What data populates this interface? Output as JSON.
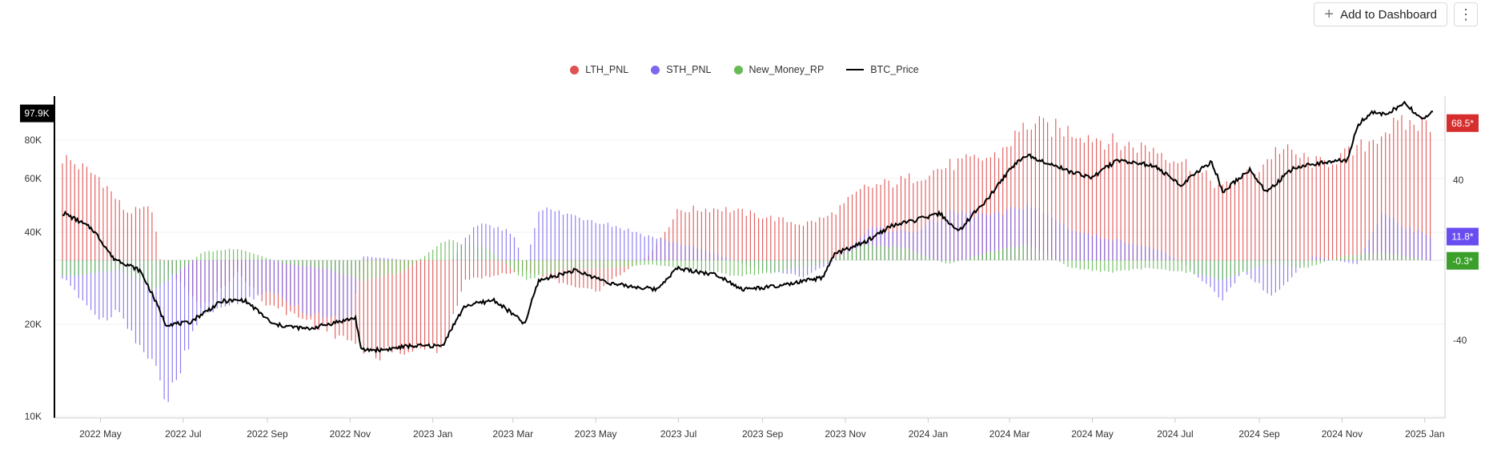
{
  "toolbar": {
    "add_label": "Add to Dashboard",
    "more_label": "⋮"
  },
  "colors": {
    "lth": "#e05252",
    "sth": "#7b68ee",
    "new_money": "#66bb55",
    "price": "#000000"
  },
  "chart_data": {
    "type": "bar",
    "legend": [
      "LTH_PNL",
      "STH_PNL",
      "New_Money_RP",
      "BTC_Price"
    ],
    "legend_position": "top-center",
    "x_ticks": [
      "2022 May",
      "2022 Jul",
      "2022 Sep",
      "2022 Nov",
      "2023 Jan",
      "2023 Mar",
      "2023 May",
      "2023 Jul",
      "2023 Sep",
      "2023 Nov",
      "2024 Jan",
      "2024 Mar",
      "2024 May",
      "2024 Jul",
      "2024 Sep",
      "2024 Nov",
      "2025 Jan"
    ],
    "left_axis": {
      "scale": "log",
      "ticks": [
        "10K",
        "20K",
        "40K",
        "60K",
        "80K"
      ],
      "tick_values": [
        10000,
        20000,
        40000,
        60000,
        80000
      ],
      "range": [
        10000,
        105000
      ]
    },
    "right_axis": {
      "ticks": [
        "40",
        "-40"
      ],
      "tick_values": [
        40,
        -40
      ],
      "range": [
        -78,
        78
      ]
    },
    "last_values": {
      "btc_price": "97.9K",
      "lth": "68.5*",
      "sth": "11.8*",
      "new_money": "-0.3*"
    },
    "x_range": [
      "2022-04-03",
      "2025-01-07"
    ],
    "series": [
      {
        "name": "LTH_PNL",
        "axis": "right",
        "x": [
          "2022-04-05",
          "2022-05-01",
          "2022-05-20",
          "2022-06-10",
          "2022-06-12",
          "2022-07-15",
          "2022-08-10",
          "2022-09-01",
          "2022-10-01",
          "2022-11-01",
          "2022-11-15",
          "2022-12-15",
          "2023-01-08",
          "2023-01-25",
          "2023-03-10",
          "2023-04-01",
          "2023-05-01",
          "2023-06-10",
          "2023-07-01",
          "2023-08-01",
          "2023-09-01",
          "2023-10-01",
          "2023-10-20",
          "2023-11-15",
          "2023-12-15",
          "2024-01-20",
          "2024-02-20",
          "2024-03-14",
          "2024-04-20",
          "2024-05-20",
          "2024-06-15",
          "2024-07-10",
          "2024-08-05",
          "2024-09-01",
          "2024-09-15",
          "2024-10-15",
          "2024-11-10",
          "2024-12-05",
          "2024-12-20",
          "2025-01-05"
        ],
        "values": [
          51,
          41,
          24,
          26,
          2,
          -24,
          -6,
          -22,
          -30,
          -40,
          -47,
          -45,
          -43,
          -10,
          -5,
          -10,
          -16,
          3,
          25,
          26,
          22,
          18,
          22,
          36,
          40,
          48,
          52,
          68,
          64,
          58,
          56,
          48,
          36,
          46,
          56,
          48,
          54,
          66,
          68,
          68.5
        ]
      },
      {
        "name": "STH_PNL",
        "axis": "right",
        "x": [
          "2022-04-05",
          "2022-05-01",
          "2022-05-15",
          "2022-06-10",
          "2022-06-20",
          "2022-07-15",
          "2022-08-10",
          "2022-09-01",
          "2022-10-01",
          "2022-11-01",
          "2022-11-10",
          "2022-12-15",
          "2023-01-15",
          "2023-02-01",
          "2023-03-01",
          "2023-03-10",
          "2023-03-20",
          "2023-05-01",
          "2023-06-10",
          "2023-07-15",
          "2023-09-01",
          "2023-10-01",
          "2023-10-20",
          "2023-11-20",
          "2023-12-20",
          "2024-01-20",
          "2024-02-20",
          "2024-03-14",
          "2024-04-20",
          "2024-05-20",
          "2024-06-20",
          "2024-07-10",
          "2024-08-05",
          "2024-08-20",
          "2024-09-10",
          "2024-10-10",
          "2024-11-12",
          "2024-12-01",
          "2024-12-20",
          "2025-01-05"
        ],
        "values": [
          -10,
          -30,
          -25,
          -55,
          -70,
          -26,
          -22,
          -15,
          -26,
          -30,
          2,
          0,
          0,
          18,
          14,
          -4,
          26,
          20,
          12,
          6,
          -5,
          -8,
          -2,
          16,
          14,
          24,
          22,
          28,
          14,
          10,
          5,
          -3,
          -20,
          -5,
          -18,
          2,
          -2,
          24,
          16,
          11.8
        ]
      },
      {
        "name": "New_Money_RP",
        "axis": "right",
        "x": [
          "2022-04-05",
          "2022-05-15",
          "2022-06-10",
          "2022-07-15",
          "2022-08-10",
          "2022-09-15",
          "2022-10-15",
          "2022-11-10",
          "2022-12-10",
          "2023-01-10",
          "2023-02-10",
          "2023-03-10",
          "2023-04-10",
          "2023-05-10",
          "2023-06-10",
          "2023-07-10",
          "2023-08-15",
          "2023-09-10",
          "2023-10-15",
          "2023-11-15",
          "2023-12-15",
          "2024-01-15",
          "2024-02-15",
          "2024-03-15",
          "2024-04-15",
          "2024-05-15",
          "2024-06-10",
          "2024-07-10",
          "2024-08-05",
          "2024-09-05",
          "2024-10-05",
          "2024-11-01",
          "2024-12-01",
          "2025-01-05"
        ],
        "values": [
          -8,
          -5,
          -15,
          4,
          6,
          -2,
          -4,
          -10,
          -6,
          10,
          6,
          -10,
          -4,
          -4,
          -2,
          -4,
          -8,
          -6,
          -2,
          8,
          6,
          -2,
          4,
          8,
          -4,
          -6,
          -4,
          -6,
          -10,
          -2,
          -4,
          2,
          4,
          -0.3
        ]
      },
      {
        "name": "BTC_Price",
        "axis": "left",
        "x": [
          "2022-04-05",
          "2022-04-25",
          "2022-05-10",
          "2022-05-30",
          "2022-06-12",
          "2022-06-18",
          "2022-07-05",
          "2022-07-30",
          "2022-08-15",
          "2022-09-05",
          "2022-10-01",
          "2022-11-05",
          "2022-11-09",
          "2022-11-25",
          "2022-12-15",
          "2023-01-08",
          "2023-01-25",
          "2023-02-15",
          "2023-03-10",
          "2023-03-20",
          "2023-04-15",
          "2023-05-15",
          "2023-06-15",
          "2023-06-30",
          "2023-07-30",
          "2023-08-17",
          "2023-09-15",
          "2023-10-16",
          "2023-10-24",
          "2023-11-15",
          "2023-12-05",
          "2023-12-20",
          "2024-01-10",
          "2024-01-23",
          "2024-02-15",
          "2024-03-05",
          "2024-03-14",
          "2024-04-15",
          "2024-05-01",
          "2024-05-20",
          "2024-06-15",
          "2024-07-05",
          "2024-07-28",
          "2024-08-05",
          "2024-08-25",
          "2024-09-06",
          "2024-09-27",
          "2024-10-20",
          "2024-11-05",
          "2024-11-13",
          "2024-11-22",
          "2024-12-05",
          "2024-12-17",
          "2024-12-30",
          "2025-01-06"
        ],
        "values": [
          46000,
          41000,
          33000,
          30000,
          23000,
          20000,
          20200,
          23800,
          24000,
          20000,
          19300,
          21000,
          16500,
          16500,
          17000,
          17000,
          23000,
          24000,
          20000,
          27800,
          30000,
          27000,
          26000,
          30500,
          29000,
          26000,
          26700,
          28500,
          34000,
          37000,
          42000,
          43500,
          46000,
          40000,
          52000,
          67000,
          71500,
          63000,
          60500,
          69000,
          66000,
          57000,
          68000,
          54000,
          64000,
          54000,
          65000,
          68000,
          69000,
          90000,
          98000,
          98000,
          106000,
          93000,
          97900
        ]
      }
    ]
  }
}
